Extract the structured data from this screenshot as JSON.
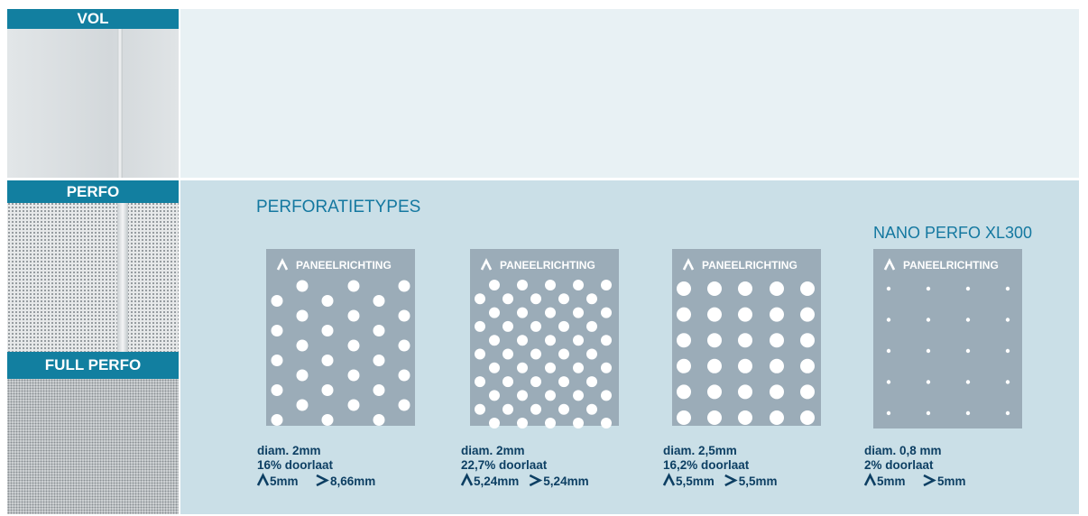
{
  "sidebar": [
    {
      "label": "VOL"
    },
    {
      "label": "PERFO"
    },
    {
      "label": "FULL PERFO"
    }
  ],
  "section": {
    "title": "PERFORATIETYPES",
    "subtitle": "NANO PERFO XL300"
  },
  "tiles": [
    {
      "direction_label": "PANEELRICHTING",
      "diameter": "diam. 2mm",
      "open_area": "16% doorlaat",
      "pitch_vertical": "5mm",
      "pitch_horizontal": "8,66mm"
    },
    {
      "direction_label": "PANEELRICHTING",
      "diameter": "diam. 2mm",
      "open_area": "22,7% doorlaat",
      "pitch_vertical": "5,24mm",
      "pitch_horizontal": "5,24mm"
    },
    {
      "direction_label": "PANEELRICHTING",
      "diameter": "diam. 2,5mm",
      "open_area": "16,2% doorlaat",
      "pitch_vertical": "5,5mm",
      "pitch_horizontal": "5,5mm"
    },
    {
      "direction_label": "PANEELRICHTING",
      "diameter": "diam. 0,8 mm",
      "open_area": "2% doorlaat",
      "pitch_vertical": "5mm",
      "pitch_horizontal": "5mm"
    }
  ]
}
